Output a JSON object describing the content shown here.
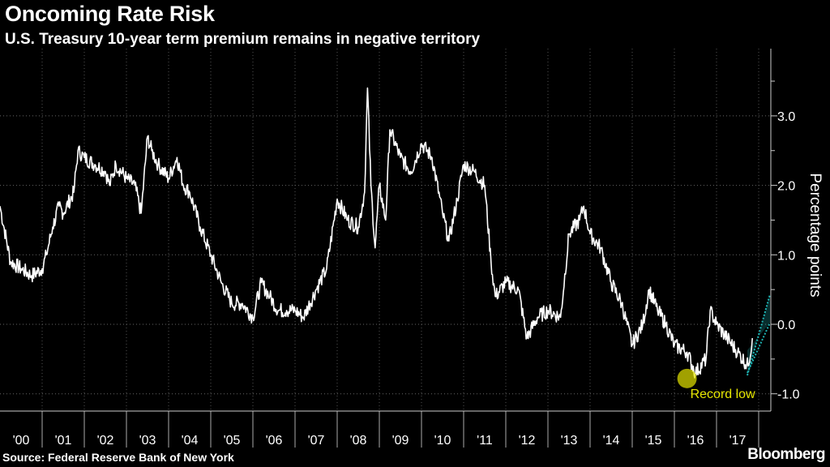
{
  "chart_data": {
    "type": "line",
    "title": "Oncoming Rate Risk",
    "subtitle": "U.S. Treasury 10-year term premium remains in negative territory",
    "ylabel": "Percentage points",
    "ylim": [
      -1.3,
      3.8
    ],
    "xlim": [
      2000,
      2017.95
    ],
    "y_ticks": [
      {
        "v": 3,
        "label": "3.0"
      },
      {
        "v": 2,
        "label": "2.0"
      },
      {
        "v": 1,
        "label": "1.0"
      },
      {
        "v": 0,
        "label": "0.0"
      },
      {
        "v": -1,
        "label": "-1.0"
      }
    ],
    "x_ticks": [
      "'00",
      "'01",
      "'02",
      "'03",
      "'04",
      "'05",
      "'06",
      "'07",
      "'08",
      "'09",
      "'10",
      "'11",
      "'12",
      "'13",
      "'14",
      "'15",
      "'16",
      "'17"
    ],
    "grid": true,
    "y_axis_side": "right",
    "line_color": "#ffffff",
    "x": [
      2000.0,
      2000.25,
      2000.5,
      2000.75,
      2001.0,
      2001.1,
      2001.25,
      2001.4,
      2001.5,
      2001.75,
      2001.85,
      2002.0,
      2002.25,
      2002.5,
      2002.6,
      2002.75,
      2003.0,
      2003.2,
      2003.35,
      2003.5,
      2003.6,
      2003.75,
      2004.0,
      2004.2,
      2004.35,
      2004.5,
      2004.75,
      2005.0,
      2005.25,
      2005.5,
      2005.75,
      2006.0,
      2006.2,
      2006.4,
      2006.6,
      2006.8,
      2007.0,
      2007.2,
      2007.5,
      2007.75,
      2008.0,
      2008.25,
      2008.5,
      2008.65,
      2008.72,
      2008.8,
      2008.9,
      2009.0,
      2009.15,
      2009.25,
      2009.5,
      2009.75,
      2010.0,
      2010.25,
      2010.5,
      2010.65,
      2010.85,
      2011.0,
      2011.25,
      2011.5,
      2011.65,
      2011.75,
      2012.0,
      2012.3,
      2012.5,
      2012.75,
      2013.0,
      2013.3,
      2013.5,
      2013.75,
      2013.85,
      2014.0,
      2014.25,
      2014.5,
      2014.75,
      2015.0,
      2015.25,
      2015.4,
      2015.6,
      2015.8,
      2016.0,
      2016.3,
      2016.5,
      2016.75,
      2016.85,
      2017.0,
      2017.25,
      2017.5,
      2017.75,
      2017.85
    ],
    "values": [
      1.7,
      0.9,
      0.8,
      0.7,
      0.8,
      1.0,
      1.4,
      1.7,
      1.6,
      1.9,
      2.5,
      2.4,
      2.3,
      2.2,
      2.0,
      2.3,
      2.1,
      2.0,
      1.6,
      2.7,
      2.5,
      2.3,
      2.1,
      2.4,
      2.0,
      1.9,
      1.4,
      1.0,
      0.6,
      0.3,
      0.3,
      0.1,
      0.6,
      0.4,
      0.2,
      0.2,
      0.2,
      0.1,
      0.5,
      0.8,
      1.8,
      1.5,
      1.4,
      1.9,
      3.4,
      2.0,
      1.1,
      2.0,
      1.5,
      2.8,
      2.4,
      2.2,
      2.6,
      2.4,
      1.6,
      1.2,
      1.8,
      2.3,
      2.2,
      2.0,
      0.9,
      0.4,
      0.6,
      0.5,
      -0.2,
      0.1,
      0.2,
      0.1,
      1.3,
      1.5,
      1.7,
      1.3,
      1.1,
      0.6,
      0.3,
      -0.3,
      0.0,
      0.5,
      0.2,
      0.0,
      -0.3,
      -0.4,
      -0.7,
      -0.5,
      0.2,
      0.0,
      -0.2,
      -0.4,
      -0.6,
      -0.2
    ],
    "annotations": [
      {
        "text": "Record low",
        "x": 2016.3,
        "y": -0.78,
        "color": "#e6e600"
      }
    ],
    "trend_color": "#1fb5b5"
  },
  "source": "Source: Federal Reserve Bank of New York",
  "logo": "Bloomberg"
}
